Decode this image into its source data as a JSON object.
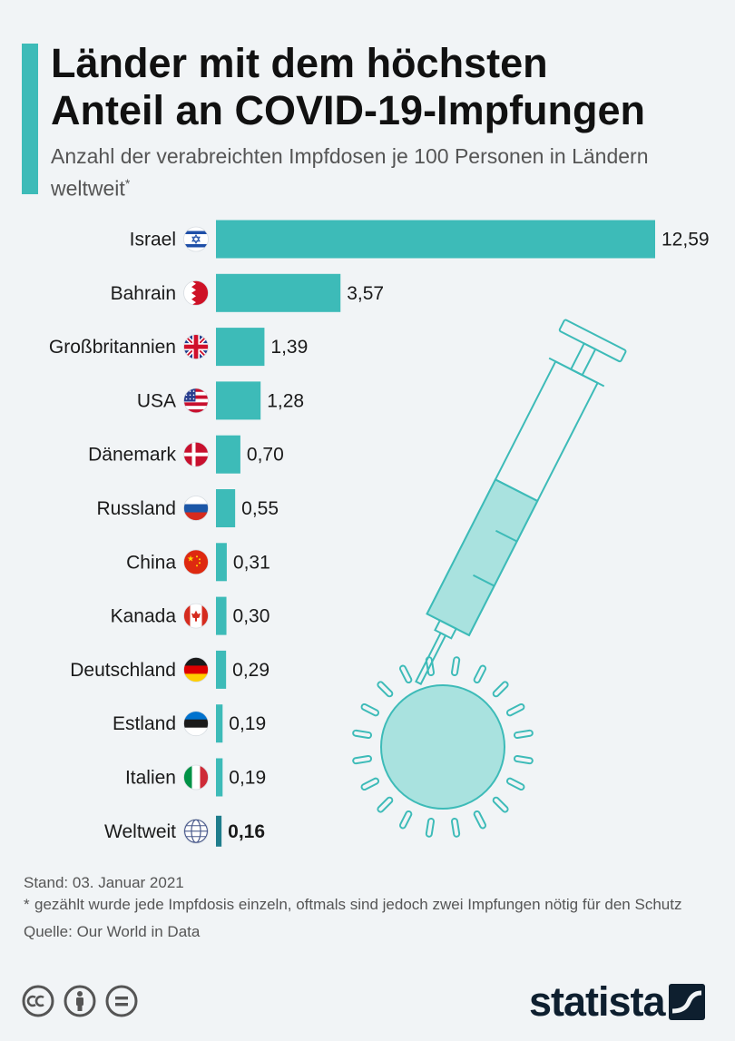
{
  "header": {
    "title_line1": "Länder mit dem höchsten",
    "title_line2": "Anteil an COVID-19-Impfungen",
    "subtitle": "Anzahl der verabreichten Impfdosen je 100 Personen in Ländern weltweit",
    "subtitle_mark": "*"
  },
  "colors": {
    "accent": "#3dbbb8",
    "bar": "#3dbbb8",
    "bar_highlight": "#1f7d8c",
    "text": "#1a1a1a",
    "muted": "#555555",
    "syringe": "#3dbbb8"
  },
  "chart_data": {
    "type": "bar",
    "orientation": "horizontal",
    "categories": [
      "Israel",
      "Bahrain",
      "Großbritannien",
      "USA",
      "Dänemark",
      "Russland",
      "China",
      "Kanada",
      "Deutschland",
      "Estland",
      "Italien",
      "Weltweit"
    ],
    "values": [
      12.59,
      3.57,
      1.39,
      1.28,
      0.7,
      0.55,
      0.31,
      0.3,
      0.29,
      0.19,
      0.19,
      0.16
    ],
    "value_labels": [
      "12,59",
      "3,57",
      "1,39",
      "1,28",
      "0,70",
      "0,55",
      "0,31",
      "0,30",
      "0,29",
      "0,19",
      "0,19",
      "0,16"
    ],
    "flags": [
      "flag-israel",
      "flag-bahrain",
      "flag-uk",
      "flag-usa",
      "flag-denmark",
      "flag-russia",
      "flag-china",
      "flag-canada",
      "flag-germany",
      "flag-estonia",
      "flag-italy",
      "globe"
    ],
    "highlight": "Weltweit",
    "xlim": [
      0,
      12.59
    ]
  },
  "footer": {
    "date": "Stand: 03. Januar 2021",
    "note_mark": "*",
    "note": "gezählt wurde jede Impfdosis einzeln, oftmals sind jedoch zwei Impfungen nötig für den Schutz",
    "source": "Quelle: Our World in Data"
  },
  "license_icons": [
    "cc-icon",
    "by-icon",
    "nd-icon"
  ],
  "logo": {
    "text": "statista"
  }
}
